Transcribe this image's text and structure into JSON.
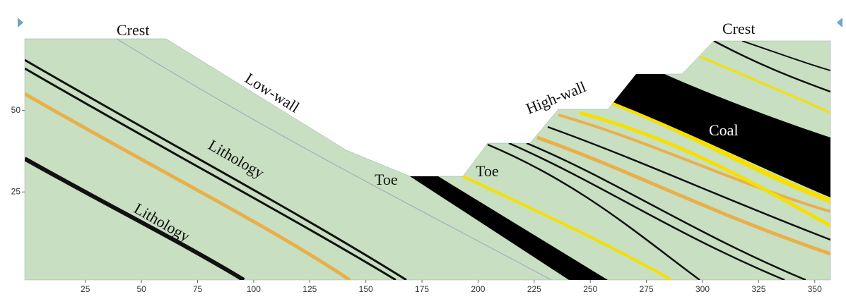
{
  "annotations": [
    "Crest",
    "Crest",
    "Low-wall",
    "High-wall",
    "Lithology",
    "Lithology",
    "Toe",
    "Toe",
    "Coal"
  ],
  "axes": {
    "xlim": [
      -2,
      357
    ],
    "xticks": [
      25,
      50,
      75,
      100,
      125,
      150,
      175,
      200,
      225,
      250,
      275,
      300,
      325,
      350
    ],
    "ylim": [
      -2,
      72
    ],
    "yticks": [
      25,
      50
    ]
  }
}
